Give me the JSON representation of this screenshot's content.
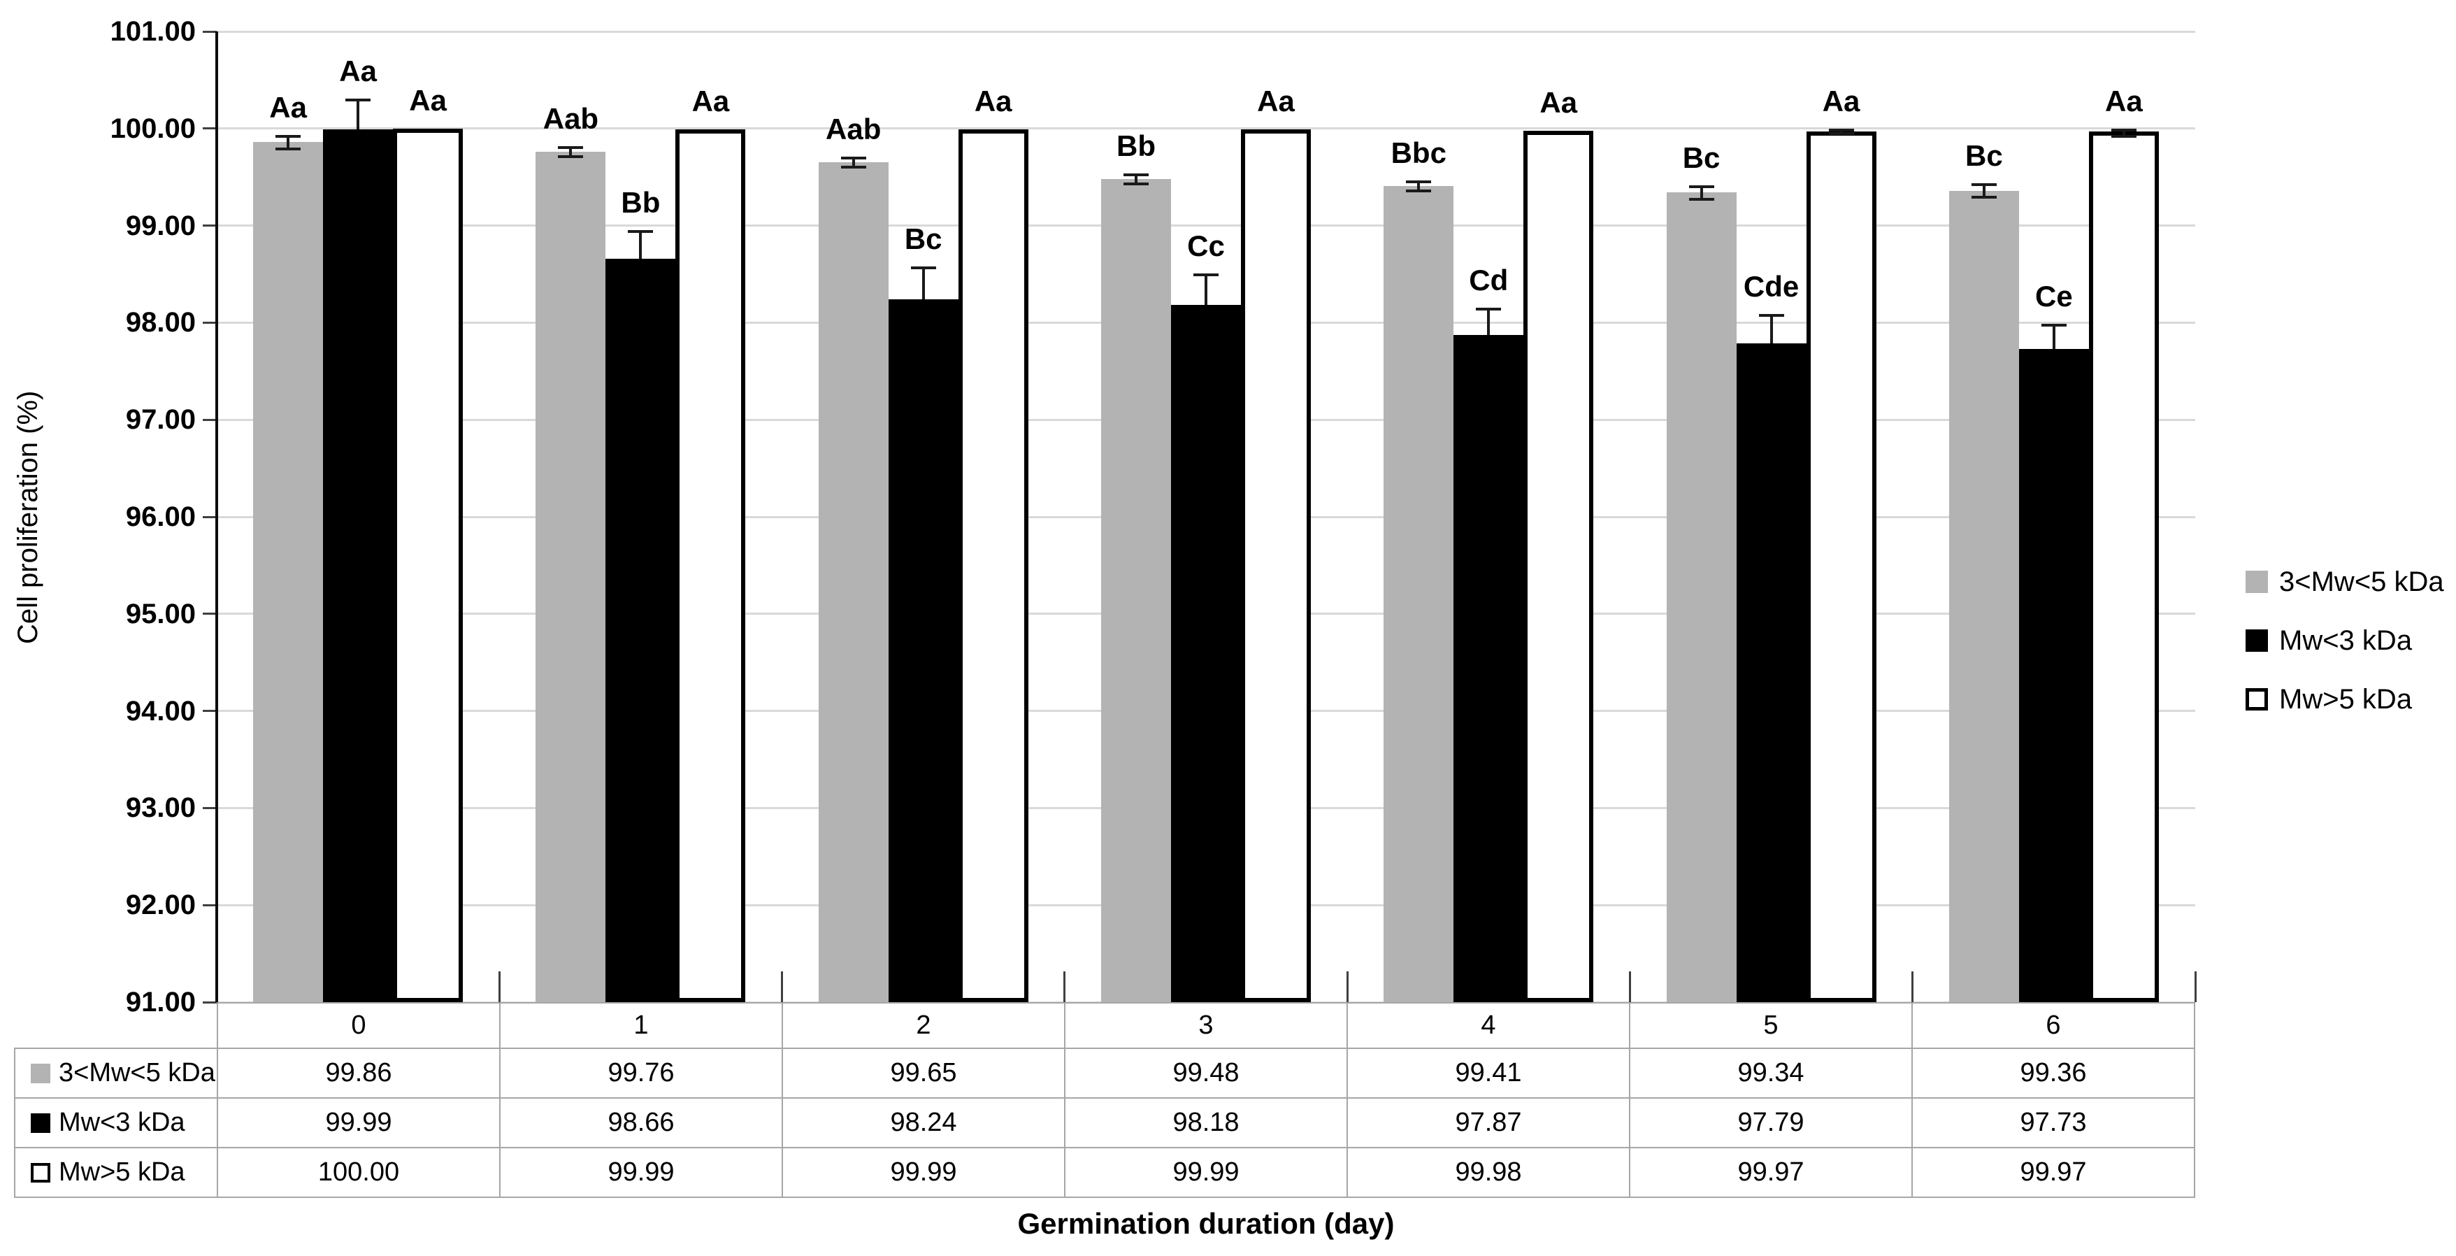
{
  "chart_data": {
    "type": "bar",
    "title": "",
    "xlabel": "Germination duration (day)",
    "ylabel": "Cell proliferation (%)",
    "ylim": [
      91,
      101
    ],
    "ytick_step": 1,
    "yticks": [
      "101.00",
      "100.00",
      "99.00",
      "98.00",
      "97.00",
      "96.00",
      "95.00",
      "94.00",
      "93.00",
      "92.00",
      "91.00"
    ],
    "grid": true,
    "legend_position": "right",
    "data_table_shown": true,
    "categories": [
      "0",
      "1",
      "2",
      "3",
      "4",
      "5",
      "6"
    ],
    "series": [
      {
        "name": "3<Mw<5 kDa",
        "color": "#b3b3b3",
        "values": [
          99.86,
          99.76,
          99.65,
          99.48,
          99.41,
          99.34,
          99.36
        ],
        "errors_up": [
          0.07,
          0.05,
          0.05,
          0.05,
          0.05,
          0.07,
          0.07
        ],
        "errors_down": [
          0.07,
          0.05,
          0.05,
          0.05,
          0.05,
          0.07,
          0.07
        ],
        "sig_labels": [
          "Aa",
          "Aab",
          "Aab",
          "Bb",
          "Bbc",
          "Bc",
          "Bc"
        ]
      },
      {
        "name": "Mw<3 kDa",
        "color": "#000000",
        "values": [
          99.99,
          98.66,
          98.24,
          98.18,
          97.87,
          97.79,
          97.73
        ],
        "errors_up": [
          0.31,
          0.29,
          0.33,
          0.32,
          0.28,
          0.29,
          0.25
        ],
        "errors_down": [
          0,
          0,
          0,
          0,
          0,
          0,
          0
        ],
        "sig_labels": [
          "Aa",
          "Bb",
          "Bc",
          "Cc",
          "Cd",
          "Cde",
          "Ce"
        ]
      },
      {
        "name": "Mw>5 kDa",
        "color": "#ffffff",
        "values": [
          100.0,
          99.99,
          99.99,
          99.99,
          99.98,
          99.97,
          99.97
        ],
        "errors_up": [
          0,
          0,
          0,
          0,
          0,
          0.02,
          0.02
        ],
        "errors_down": [
          0,
          0,
          0,
          0,
          0,
          0.02,
          0.05
        ],
        "sig_labels": [
          "Aa",
          "Aa",
          "Aa",
          "Aa",
          "Aa",
          "Aa",
          "Aa"
        ]
      }
    ]
  },
  "colors": {
    "gridline": "#d9d9d9",
    "axis_line": "#0d0d0d",
    "table_border": "#a6a6a6",
    "series_gray": "#b3b3b3",
    "series_black": "#000000",
    "series_white": "#ffffff"
  }
}
